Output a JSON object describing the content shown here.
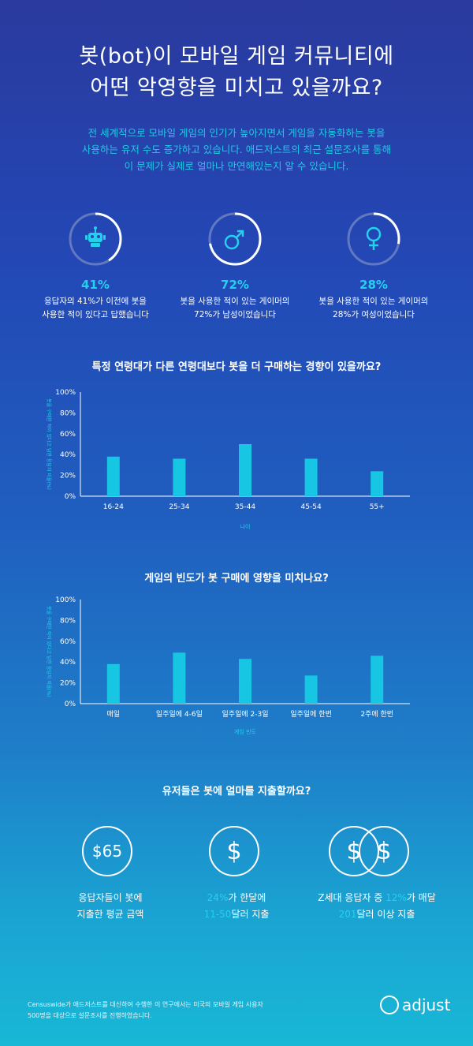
{
  "title_line1": "봇(bot)이 모바일 게임 커뮤니티에",
  "title_line2": "어떤 악영향을 미치고 있을까요?",
  "intro_line1": "전 세계적으로 모바일 게임의 인기가 높아지면서 게임을 자동화하는 봇을",
  "intro_line2": "사용하는 유저 수도 증가하고 있습니다. 애드저스트의 최근 설문조사를 통해",
  "intro_line3": "이 문제가 실제로 얼마나 만연해있는지 알 수 있습니다.",
  "stats": [
    {
      "icon": "robot-icon",
      "percent": "41%",
      "value": 41,
      "line1": "응답자의 41%가 이전에 봇을",
      "line2": "사용한 적이 있다고 답했습니다"
    },
    {
      "icon": "male-icon",
      "percent": "72%",
      "value": 72,
      "line1": "봇을 사용한 적이 있는 게이머의",
      "line2": "72%가 남성이었습니다"
    },
    {
      "icon": "female-icon",
      "percent": "28%",
      "value": 28,
      "line1": "봇을 사용한 적이 있는 게이머의",
      "line2": "28%가 여성이었습니다"
    }
  ],
  "chart_data": [
    {
      "type": "bar",
      "title": "특정 연령대가 다른 연령대보다 봇을 더 구매하는 경향이 있을까요?",
      "categories": [
        "16-24",
        "25-34",
        "35-44",
        "45-54",
        "55+"
      ],
      "values": [
        38,
        36,
        50,
        36,
        24
      ],
      "xlabel": "나이",
      "ylabel": "봇을 구매한 적이 있다고 답한 응답자 비율(%)",
      "yticks": [
        "0%",
        "20%",
        "40%",
        "60%",
        "80%",
        "100%"
      ],
      "ylim": [
        0,
        100
      ],
      "grid": false,
      "color": "#16c6e2"
    },
    {
      "type": "bar",
      "title": "게임의 빈도가 봇 구매에 영향을 미치나요?",
      "categories": [
        "매일",
        "일주일에 4-6일",
        "일주일에 2-3일",
        "일주일에 한번",
        "2주에 한번"
      ],
      "values": [
        38,
        49,
        43,
        27,
        46
      ],
      "xlabel": "게임 빈도",
      "ylabel": "봇을 구매한 적이 있다고 답한 응답자 비율(%)",
      "yticks": [
        "0%",
        "20%",
        "40%",
        "60%",
        "80%",
        "100%"
      ],
      "ylim": [
        0,
        100
      ],
      "grid": false,
      "color": "#16c6e2"
    }
  ],
  "spend": {
    "title": "유저들은 봇에 얼마를 지출할까요?",
    "avg_amount": "$65",
    "dollar": "$",
    "avg_line1": "응답자들이 봇에",
    "avg_line2": "지출한 평균 금액",
    "mid_pct": "24%",
    "mid_line1_rest": "가 한달에",
    "mid_range": "11-50",
    "mid_line2_rest": "달러 지출",
    "right_prefix": "Z세대 응답자 중 ",
    "right_pct": "12%",
    "right_line1_rest": "가 매달",
    "right_amount": "201",
    "right_line2_rest": "달러 이상 지출"
  },
  "footer_line1": "Censuswide가 애드저스트를 대신하여 수행한 이 연구에서는 미국의 모바일 게임 사용자",
  "footer_line2": "500명을 대상으로 설문조사를 진행하였습니다.",
  "logo_text": "adjust"
}
